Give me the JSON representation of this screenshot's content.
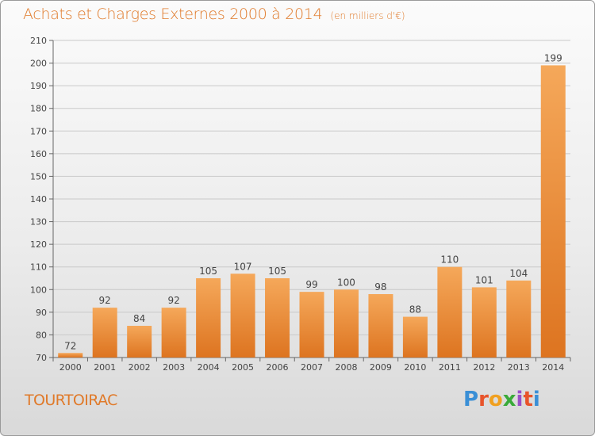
{
  "header": {
    "title": "Achats et Charges Externes 2000 à 2014",
    "unit": "(en milliers d'€)"
  },
  "footer": {
    "commune": "TOURTOIRAC",
    "logo_text": "Proxiti",
    "logo_colors": [
      "#3a8fd6",
      "#e8542b",
      "#f0a020",
      "#3aaa3a",
      "#9a4fc8",
      "#e8542b",
      "#3a8fd6"
    ]
  },
  "colors": {
    "bar_light": "#f5a85a",
    "bar_dark": "#dd7420",
    "accent_text": "#e07a2a"
  },
  "chart_data": {
    "type": "bar",
    "categories": [
      "2000",
      "2001",
      "2002",
      "2003",
      "2004",
      "2005",
      "2006",
      "2007",
      "2008",
      "2009",
      "2010",
      "2011",
      "2012",
      "2013",
      "2014"
    ],
    "values": [
      72,
      92,
      84,
      92,
      105,
      107,
      105,
      99,
      100,
      98,
      88,
      110,
      101,
      104,
      199
    ],
    "ylim": [
      70,
      210
    ],
    "yticks": [
      70,
      80,
      90,
      100,
      110,
      120,
      130,
      140,
      150,
      160,
      170,
      180,
      190,
      200,
      210
    ],
    "grid": true,
    "title": "Achats et Charges Externes 2000 à 2014",
    "xlabel": "",
    "ylabel": ""
  }
}
